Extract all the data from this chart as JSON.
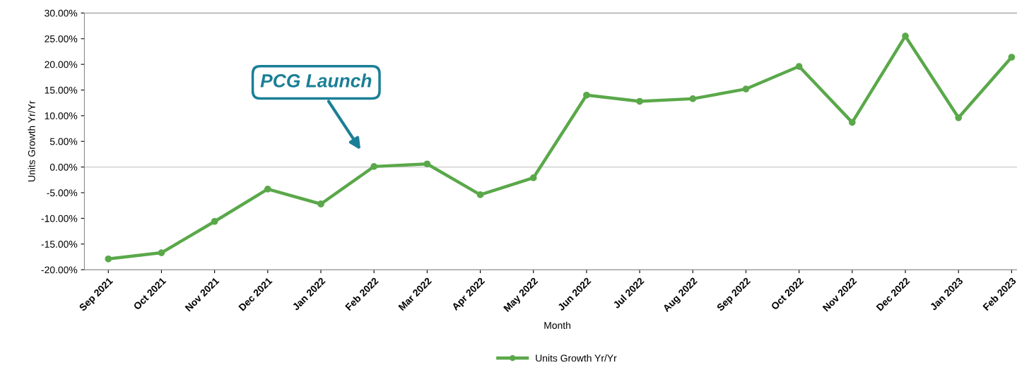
{
  "chart_data": {
    "type": "line",
    "xlabel": "Month",
    "ylabel": "Units Growth Yr/Yr",
    "categories": [
      "Sep 2021",
      "Oct 2021",
      "Nov 2021",
      "Dec 2021",
      "Jan 2022",
      "Feb 2022",
      "Mar 2022",
      "Apr 2022",
      "May 2022",
      "Jun 2022",
      "Jul 2022",
      "Aug 2022",
      "Sep 2022",
      "Oct 2022",
      "Nov 2022",
      "Dec 2022",
      "Jan 2023",
      "Feb 2023"
    ],
    "series": [
      {
        "name": "Units Growth Yr/Yr",
        "color": "#5aa84a",
        "values": [
          -17.9,
          -16.7,
          -10.6,
          -4.3,
          -7.2,
          0.1,
          0.6,
          -5.4,
          -2.1,
          14.0,
          12.8,
          13.3,
          15.2,
          19.6,
          8.7,
          25.5,
          9.6,
          21.4
        ]
      }
    ],
    "ylim": [
      -20,
      30
    ],
    "yticks": [
      {
        "value": -20,
        "label": "-20.00%"
      },
      {
        "value": -15,
        "label": "-15.00%"
      },
      {
        "value": -10,
        "label": "-10.00%"
      },
      {
        "value": -5,
        "label": "-5.00%"
      },
      {
        "value": 0,
        "label": "0.00%"
      },
      {
        "value": 5,
        "label": "5.00%"
      },
      {
        "value": 10,
        "label": "10.00%"
      },
      {
        "value": 15,
        "label": "15.00%"
      },
      {
        "value": 20,
        "label": "20.00%"
      },
      {
        "value": 25,
        "label": "25.00%"
      },
      {
        "value": 30,
        "label": "30.00%"
      }
    ],
    "ref_lines": [
      {
        "axis": "y",
        "value": 0,
        "color": "#c8c8c8"
      }
    ],
    "annotations": [
      "PCG Launch"
    ],
    "marker": "circle",
    "line_style": "solid",
    "grid": false,
    "legend": "bottom"
  }
}
